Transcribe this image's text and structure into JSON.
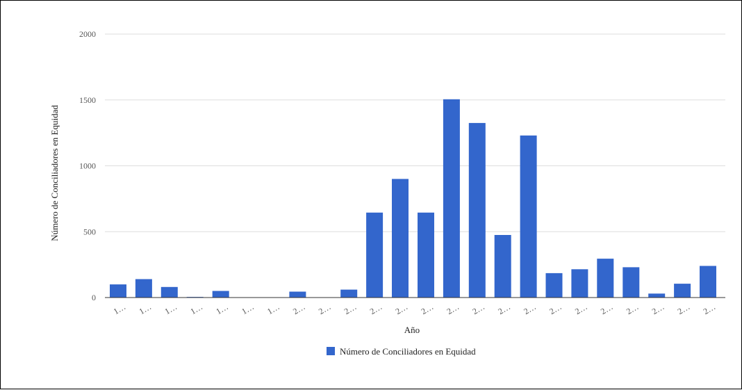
{
  "chart_data": {
    "type": "bar",
    "title": "",
    "xlabel": "Año",
    "ylabel": "Número de Conciliadores en Equidad",
    "ylim": [
      0,
      2000
    ],
    "yticks": [
      "0",
      "500",
      "1000",
      "1500",
      "2000"
    ],
    "grid": true,
    "legend_position": "bottom",
    "categories": [
      "1…",
      "1…",
      "1…",
      "1…",
      "1…",
      "1…",
      "1…",
      "2…",
      "2…",
      "2…",
      "2…",
      "2…",
      "2…",
      "2…",
      "2…",
      "2…",
      "2…",
      "2…",
      "2…",
      "2…",
      "2…",
      "2…",
      "2…",
      "2…"
    ],
    "series": [
      {
        "name": "Número de Conciliadores en Equidad",
        "color": "#3366cc",
        "values": [
          100,
          140,
          80,
          5,
          50,
          0,
          0,
          45,
          0,
          60,
          645,
          900,
          645,
          1505,
          1325,
          475,
          1230,
          185,
          215,
          295,
          230,
          30,
          105,
          240
        ]
      }
    ]
  }
}
